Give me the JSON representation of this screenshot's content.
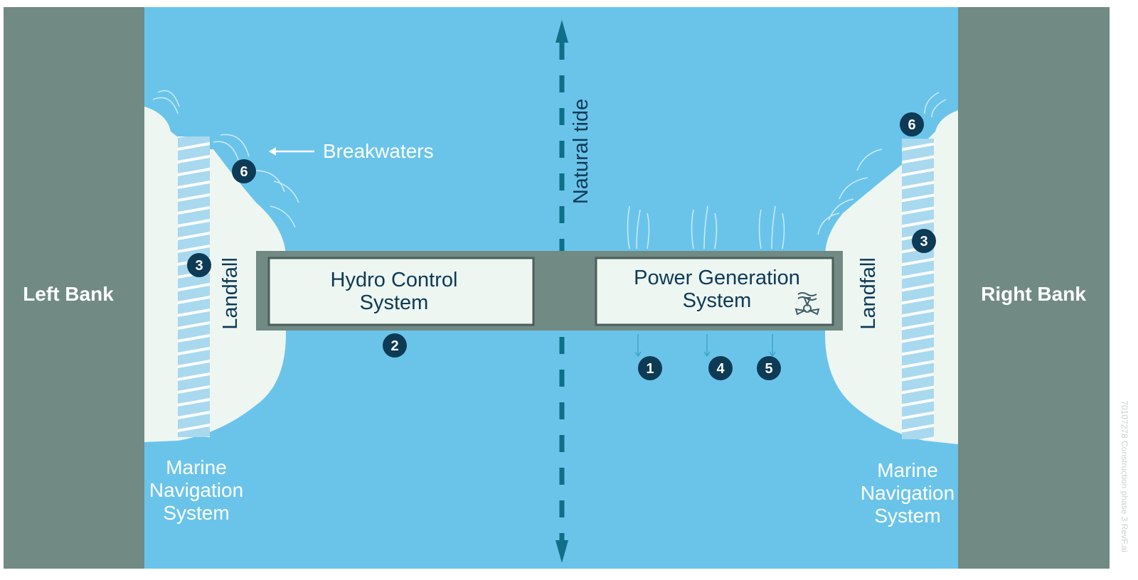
{
  "banks": {
    "left": "Left Bank",
    "right": "Right Bank"
  },
  "structures": [
    {
      "lines": [
        "Hydro Control",
        "System"
      ]
    },
    {
      "lines": [
        "Power Generation",
        "System"
      ]
    }
  ],
  "landfall": {
    "left": "Landfall",
    "right": "Landfall"
  },
  "navigation": {
    "left": [
      "Marine",
      "Navigation",
      "System"
    ],
    "right": [
      "Marine",
      "Navigation",
      "System"
    ]
  },
  "breakwaters": "Breakwaters",
  "tide": "Natural tide",
  "markers": [
    "6",
    "3",
    "2",
    "6",
    "3",
    "1",
    "4",
    "5"
  ],
  "watermark": "70107278 Construction phase 3 RevF.ai"
}
